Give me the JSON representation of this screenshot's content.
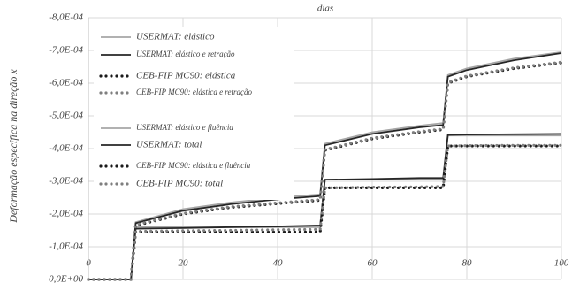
{
  "chart_data": {
    "type": "line",
    "title": "dias",
    "y_label": "Deformação específica na direção x",
    "x": [
      0,
      9,
      10,
      20,
      30,
      40,
      49,
      50,
      60,
      70,
      75,
      76,
      80,
      90,
      100
    ],
    "xlim": [
      0,
      100
    ],
    "xticks": [
      0,
      20,
      40,
      60,
      80,
      100
    ],
    "ylim": [
      -0.0008,
      0
    ],
    "y_inverted": true,
    "yticks": [
      {
        "value": -0.0008,
        "label": "-8,0E-04"
      },
      {
        "value": -0.0007,
        "label": "-7,0E-04"
      },
      {
        "value": -0.0006,
        "label": "-6,0E-04"
      },
      {
        "value": -0.0005,
        "label": "-5,0E-04"
      },
      {
        "value": -0.0004,
        "label": "-4,0E-04"
      },
      {
        "value": -0.0003,
        "label": "-3,0E-04"
      },
      {
        "value": -0.0002,
        "label": "-2,0E-04"
      },
      {
        "value": -0.0001,
        "label": "-1,0E-04"
      },
      {
        "value": 0,
        "label": "0,0E+00"
      }
    ],
    "grid": true,
    "series": [
      {
        "name": "USERMAT: elástico",
        "color": "#a6a6a6",
        "line_style": "solid",
        "values": [
          0,
          0,
          -0.00016,
          -0.00016,
          -0.00016,
          -0.00016,
          -0.00016,
          -0.000305,
          -0.000305,
          -0.000305,
          -0.000305,
          -0.00044,
          -0.00044,
          -0.00044,
          -0.00044
        ]
      },
      {
        "name": "USERMAT: elástico e retração",
        "color": "#262626",
        "line_style": "solid",
        "values": [
          0,
          0,
          -0.000155,
          -0.000157,
          -0.00016,
          -0.000162,
          -0.000165,
          -0.000305,
          -0.000307,
          -0.00031,
          -0.00031,
          -0.000442,
          -0.000443,
          -0.000444,
          -0.000445
        ]
      },
      {
        "name": "CEB-FIP MC90: elástica",
        "color": "#1a1a1a",
        "line_style": "dotted",
        "values": [
          0,
          0,
          -0.000145,
          -0.000145,
          -0.000145,
          -0.000145,
          -0.000145,
          -0.00028,
          -0.00028,
          -0.00028,
          -0.00028,
          -0.000408,
          -0.000408,
          -0.000408,
          -0.000408
        ]
      },
      {
        "name": "CEB-FIP MC90: elástica e retração",
        "color": "#7f7f7f",
        "line_style": "dotted",
        "values": [
          0,
          0,
          -0.000147,
          -0.000149,
          -0.00015,
          -0.000152,
          -0.000153,
          -0.00028,
          -0.000282,
          -0.000283,
          -0.000284,
          -0.000408,
          -0.000409,
          -0.00041,
          -0.00041
        ]
      },
      {
        "name": "USERMAT: elástico e fluência",
        "color": "#a6a6a6",
        "line_style": "solid",
        "values": [
          0,
          0,
          -0.000175,
          -0.000215,
          -0.000235,
          -0.00025,
          -0.00026,
          -0.000415,
          -0.00045,
          -0.00047,
          -0.000478,
          -0.000625,
          -0.000645,
          -0.000675,
          -0.000695
        ]
      },
      {
        "name": "USERMAT: total",
        "color": "#262626",
        "line_style": "solid",
        "values": [
          0,
          0,
          -0.000172,
          -0.00021,
          -0.00023,
          -0.000245,
          -0.000255,
          -0.00041,
          -0.000445,
          -0.000465,
          -0.000472,
          -0.00062,
          -0.00064,
          -0.00067,
          -0.000692
        ]
      },
      {
        "name": "CEB-FIP MC90: elástica e fluência",
        "color": "#1a1a1a",
        "line_style": "dotted",
        "values": [
          0,
          0,
          -0.000165,
          -0.0002,
          -0.00022,
          -0.000232,
          -0.000242,
          -0.000395,
          -0.00043,
          -0.00045,
          -0.000458,
          -0.0006,
          -0.00062,
          -0.000645,
          -0.000662
        ]
      },
      {
        "name": "CEB-FIP MC90: total",
        "color": "#7f7f7f",
        "line_style": "dotted",
        "values": [
          0,
          0,
          -0.000167,
          -0.000202,
          -0.000222,
          -0.000234,
          -0.000244,
          -0.000397,
          -0.000432,
          -0.000452,
          -0.00046,
          -0.000602,
          -0.000622,
          -0.000647,
          -0.000664
        ]
      }
    ]
  }
}
